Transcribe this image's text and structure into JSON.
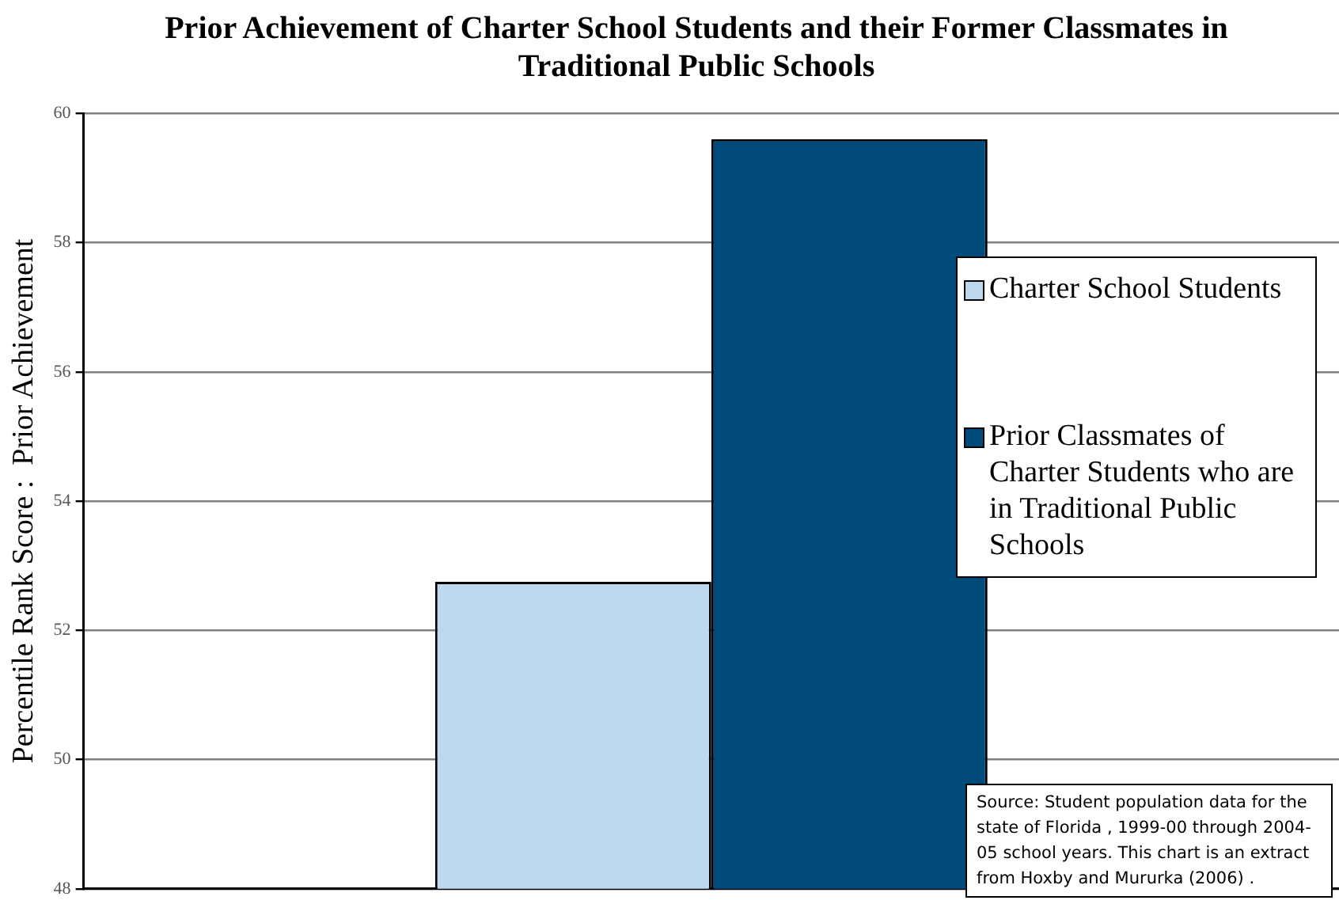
{
  "chart_data": {
    "type": "bar",
    "title": "Prior Achievement of Charter School Students  and their Former Classmates in Traditional Public Schools",
    "ylabel": "Percentile Rank Score :  Prior Achievement",
    "categories": [
      null
    ],
    "series": [
      {
        "name": "Charter School Students",
        "color": "#bcd9ef",
        "values": [
          52.75
        ]
      },
      {
        "name": "Prior Classmates of Charter Students who are in Traditional Public Schools",
        "color": "#004a7c",
        "values": [
          59.6
        ]
      }
    ],
    "ylim": [
      48,
      60
    ],
    "yticks": [
      48,
      50,
      52,
      54,
      56,
      58,
      60
    ],
    "grid": "y",
    "legend": "right",
    "annotations": [
      "Source:  Student population data for the state of Florida , 1999-00 through 2004-05 school years.  This chart is an extract from Hoxby and Mururka (2006) ."
    ]
  }
}
